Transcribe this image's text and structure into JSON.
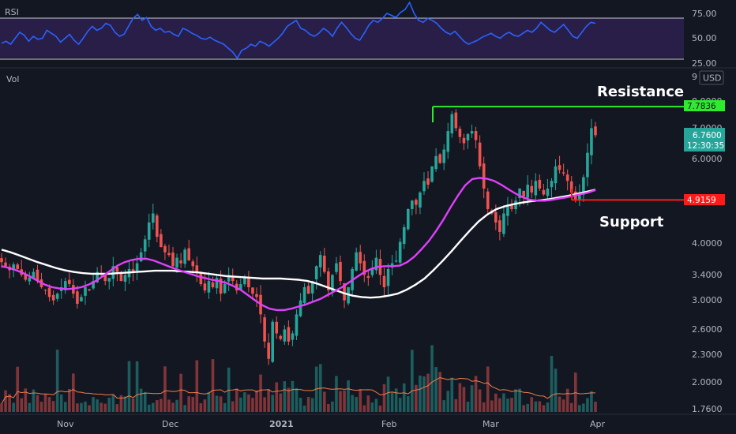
{
  "chart_data": {
    "type": "candlestick",
    "rsi_pane": {
      "label": "RSI",
      "ticks": [
        "75.00",
        "50.00",
        "25.00"
      ],
      "upper_band": 70,
      "lower_band": 30,
      "values": [
        45,
        47,
        44,
        50,
        56,
        53,
        47,
        52,
        49,
        50,
        58,
        55,
        52,
        46,
        50,
        54,
        48,
        44,
        50,
        57,
        62,
        58,
        60,
        65,
        63,
        56,
        52,
        54,
        62,
        70,
        74,
        68,
        71,
        62,
        58,
        60,
        56,
        57,
        54,
        52,
        60,
        58,
        55,
        53,
        50,
        49,
        51,
        48,
        46,
        44,
        40,
        36,
        30,
        38,
        40,
        44,
        42,
        47,
        45,
        42,
        46,
        50,
        55,
        62,
        65,
        68,
        60,
        58,
        54,
        52,
        55,
        60,
        57,
        52,
        60,
        66,
        61,
        55,
        50,
        48,
        55,
        63,
        68,
        66,
        70,
        75,
        73,
        71,
        76,
        79,
        86,
        75,
        68,
        66,
        70,
        68,
        65,
        60,
        56,
        54,
        57,
        52,
        47,
        44,
        46,
        48,
        51,
        53,
        55,
        52,
        50,
        54,
        56,
        53,
        52,
        55,
        58,
        56,
        60,
        66,
        62,
        58,
        56,
        60,
        64,
        58,
        52,
        50,
        56,
        62,
        66,
        65
      ],
      "colors": {
        "line": "#2962ff",
        "band": "#7e57c2"
      }
    },
    "price_pane": {
      "volume_label": "Vol",
      "currency": "USD",
      "x_tick_labels": [
        "Nov",
        "Dec",
        "2021",
        "Feb",
        "Mar",
        "Apr"
      ],
      "y_tick_labels": [
        "9",
        "8.0000",
        "7.0000",
        "6.0000",
        "4.0000",
        "3.4000",
        "3.0000",
        "2.6000",
        "2.3000",
        "2.0000",
        "1.7600"
      ],
      "last_price": "6.7600",
      "countdown": "12:30:35",
      "resistance": {
        "label": "Resistance",
        "value": "7.7836",
        "price": 7.7836,
        "color": "#2eeb2e"
      },
      "support": {
        "label": "Support",
        "value": "4.9159",
        "price": 4.9159,
        "color": "#ff1a1a"
      },
      "candles_close": [
        3.62,
        3.55,
        3.48,
        3.58,
        3.5,
        3.4,
        3.32,
        3.36,
        3.45,
        3.3,
        3.2,
        3.15,
        3.05,
        3.0,
        3.1,
        3.2,
        3.3,
        3.25,
        3.1,
        2.95,
        3.05,
        3.2,
        3.15,
        3.3,
        3.45,
        3.4,
        3.3,
        3.35,
        3.55,
        3.45,
        3.3,
        3.4,
        3.5,
        3.45,
        3.6,
        3.8,
        4.05,
        4.4,
        4.6,
        4.1,
        3.9,
        3.8,
        3.75,
        3.55,
        3.7,
        3.6,
        3.85,
        3.65,
        3.55,
        3.45,
        3.25,
        3.15,
        3.3,
        3.2,
        3.35,
        3.1,
        3.25,
        3.4,
        3.3,
        3.15,
        3.25,
        3.35,
        3.2,
        3.1,
        3.05,
        2.8,
        2.45,
        2.25,
        2.7,
        2.55,
        2.48,
        2.6,
        2.45,
        2.55,
        2.8,
        3.0,
        3.2,
        3.1,
        3.3,
        3.55,
        3.75,
        3.45,
        3.15,
        3.4,
        3.6,
        3.3,
        3.0,
        3.2,
        3.5,
        3.8,
        3.6,
        3.4,
        3.35,
        3.5,
        3.7,
        3.4,
        3.2,
        3.5,
        3.6,
        3.65,
        4.0,
        4.3,
        4.7,
        4.9,
        4.8,
        5.1,
        5.4,
        5.3,
        5.8,
        6.1,
        5.9,
        6.3,
        6.9,
        7.5,
        7.0,
        6.7,
        6.5,
        6.8,
        6.9,
        6.6,
        5.8,
        5.2,
        4.7,
        4.6,
        4.4,
        4.2,
        4.6,
        4.8,
        4.7,
        4.9,
        5.2,
        5.0,
        5.3,
        5.1,
        5.4,
        5.2,
        5.05,
        5.2,
        5.4,
        5.8,
        5.7,
        5.6,
        5.4,
        5.1,
        4.9,
        5.1,
        5.5,
        6.2,
        7.0,
        6.76
      ],
      "ma_fast": [
        3.55,
        3.52,
        3.48,
        3.43,
        3.37,
        3.3,
        3.24,
        3.2,
        3.18,
        3.17,
        3.18,
        3.2,
        3.24,
        3.3,
        3.38,
        3.47,
        3.56,
        3.62,
        3.66,
        3.68,
        3.68,
        3.65,
        3.6,
        3.55,
        3.5,
        3.46,
        3.42,
        3.38,
        3.35,
        3.32,
        3.3,
        3.27,
        3.22,
        3.16,
        3.08,
        3.0,
        2.93,
        2.88,
        2.86,
        2.86,
        2.88,
        2.91,
        2.94,
        2.98,
        3.02,
        3.08,
        3.14,
        3.2,
        3.28,
        3.36,
        3.44,
        3.5,
        3.54,
        3.55,
        3.55,
        3.56,
        3.62,
        3.72,
        3.86,
        4.02,
        4.22,
        4.46,
        4.74,
        5.02,
        5.28,
        5.45,
        5.48,
        5.46,
        5.4,
        5.3,
        5.18,
        5.07,
        4.98,
        4.92,
        4.9,
        4.9,
        4.92,
        4.95,
        4.98,
        5.02,
        5.06,
        5.1,
        5.16
      ],
      "ma_slow": [
        3.85,
        3.8,
        3.74,
        3.68,
        3.62,
        3.57,
        3.52,
        3.48,
        3.45,
        3.43,
        3.42,
        3.42,
        3.42,
        3.43,
        3.44,
        3.45,
        3.46,
        3.47,
        3.47,
        3.47,
        3.46,
        3.45,
        3.44,
        3.42,
        3.4,
        3.38,
        3.37,
        3.36,
        3.35,
        3.34,
        3.34,
        3.34,
        3.33,
        3.32,
        3.3,
        3.26,
        3.21,
        3.16,
        3.11,
        3.07,
        3.05,
        3.04,
        3.05,
        3.07,
        3.1,
        3.16,
        3.24,
        3.34,
        3.48,
        3.64,
        3.82,
        4.02,
        4.22,
        4.42,
        4.58,
        4.7,
        4.77,
        4.82,
        4.86,
        4.89,
        4.91,
        4.94,
        4.98,
        5.02,
        5.07,
        5.12,
        5.17
      ],
      "colors": {
        "up": "#26a69a",
        "down": "#ef5350",
        "ma_fast": "#e040fb",
        "ma_slow": "#ffffff",
        "volume_ma": "#f57c4a"
      }
    }
  }
}
